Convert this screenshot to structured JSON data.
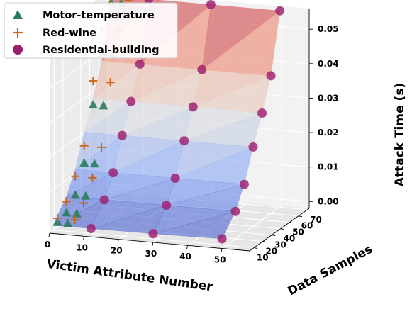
{
  "chart_data": {
    "type": "scatter",
    "subtype": "3d-scatter-with-surface",
    "xlabel": "Victim Attribute Number",
    "ylabel": "Data Samples",
    "zlabel": "Attack Time (s)",
    "xlim": [
      0,
      58
    ],
    "ylim": [
      5,
      72
    ],
    "zlim": [
      -0.002,
      0.056
    ],
    "xticks": [
      "0",
      "10",
      "20",
      "30",
      "40",
      "50"
    ],
    "yticks": [
      "10",
      "20",
      "30",
      "40",
      "50",
      "60",
      "70"
    ],
    "zticks": [
      "0.00",
      "0.01",
      "0.02",
      "0.03",
      "0.04",
      "0.05"
    ],
    "legend_position": "top-left",
    "grid": true,
    "surface_colormap": "coolwarm",
    "series": [
      {
        "name": "Motor-temperature",
        "marker": "triangle",
        "color": "#2a7d5b",
        "points": [
          {
            "x": 1,
            "y": 10,
            "z": 0.0003
          },
          {
            "x": 1,
            "y": 20,
            "z": 0.0012
          },
          {
            "x": 1,
            "y": 30,
            "z": 0.0045
          },
          {
            "x": 1,
            "y": 40,
            "z": 0.012
          },
          {
            "x": 1,
            "y": 50,
            "z": 0.027
          },
          {
            "x": 1,
            "y": 60,
            "z": 0.04
          },
          {
            "x": 1,
            "y": 70,
            "z": 0.053
          },
          {
            "x": 4,
            "y": 10,
            "z": 0.0003
          },
          {
            "x": 4,
            "y": 20,
            "z": 0.0012
          },
          {
            "x": 4,
            "y": 30,
            "z": 0.0045
          },
          {
            "x": 4,
            "y": 40,
            "z": 0.012
          },
          {
            "x": 4,
            "y": 50,
            "z": 0.027
          },
          {
            "x": 4,
            "y": 60,
            "z": 0.04
          },
          {
            "x": 4,
            "y": 70,
            "z": 0.053
          }
        ]
      },
      {
        "name": "Red-wine",
        "marker": "plus",
        "color": "#c8641e",
        "points": [
          {
            "x": 1,
            "y": 10,
            "z": 0.0015
          },
          {
            "x": 1,
            "y": 20,
            "z": 0.0045
          },
          {
            "x": 1,
            "y": 30,
            "z": 0.01
          },
          {
            "x": 1,
            "y": 40,
            "z": 0.017
          },
          {
            "x": 1,
            "y": 50,
            "z": 0.034
          },
          {
            "x": 1,
            "y": 60,
            "z": 0.047
          },
          {
            "x": 1,
            "y": 70,
            "z": 0.054
          },
          {
            "x": 6,
            "y": 10,
            "z": 0.0015
          },
          {
            "x": 6,
            "y": 20,
            "z": 0.0045
          },
          {
            "x": 6,
            "y": 30,
            "z": 0.01
          },
          {
            "x": 6,
            "y": 40,
            "z": 0.017
          },
          {
            "x": 6,
            "y": 50,
            "z": 0.034
          },
          {
            "x": 6,
            "y": 60,
            "z": 0.047
          },
          {
            "x": 6,
            "y": 70,
            "z": 0.054
          }
        ]
      },
      {
        "name": "Residential-building",
        "marker": "circle",
        "color": "#9c1f6e",
        "points": [
          {
            "x": 12,
            "y": 5,
            "z": 0.0004
          },
          {
            "x": 30,
            "y": 5,
            "z": 0.0005
          },
          {
            "x": 50,
            "y": 5,
            "z": 0.0008
          },
          {
            "x": 12,
            "y": 20,
            "z": 0.006
          },
          {
            "x": 30,
            "y": 20,
            "z": 0.006
          },
          {
            "x": 50,
            "y": 20,
            "z": 0.006
          },
          {
            "x": 12,
            "y": 30,
            "z": 0.012
          },
          {
            "x": 30,
            "y": 30,
            "z": 0.012
          },
          {
            "x": 50,
            "y": 30,
            "z": 0.012
          },
          {
            "x": 12,
            "y": 40,
            "z": 0.021
          },
          {
            "x": 30,
            "y": 40,
            "z": 0.021
          },
          {
            "x": 50,
            "y": 40,
            "z": 0.021
          },
          {
            "x": 12,
            "y": 50,
            "z": 0.029
          },
          {
            "x": 30,
            "y": 50,
            "z": 0.029
          },
          {
            "x": 50,
            "y": 50,
            "z": 0.029
          },
          {
            "x": 12,
            "y": 60,
            "z": 0.038
          },
          {
            "x": 30,
            "y": 60,
            "z": 0.038
          },
          {
            "x": 50,
            "y": 60,
            "z": 0.038
          },
          {
            "x": 12,
            "y": 70,
            "z": 0.055
          },
          {
            "x": 30,
            "y": 70,
            "z": 0.055
          },
          {
            "x": 50,
            "y": 70,
            "z": 0.055
          }
        ]
      }
    ]
  }
}
